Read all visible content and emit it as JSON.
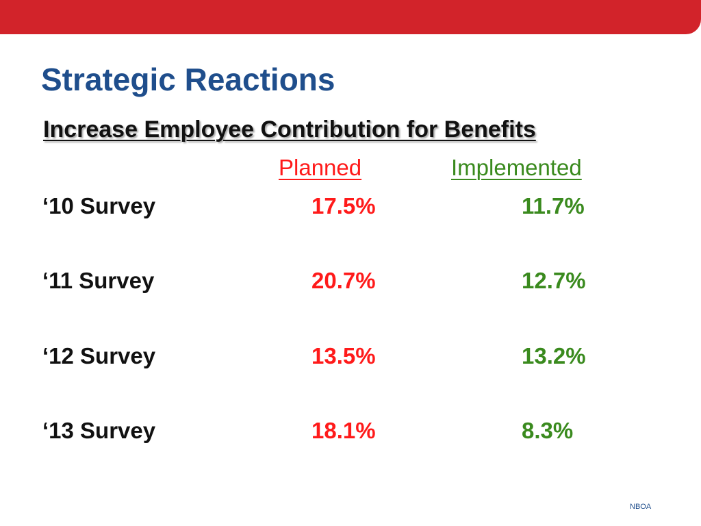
{
  "slide": {
    "title": "Strategic Reactions",
    "subtitle": "Increase Employee Contribution for Benefits",
    "columns": {
      "planned": "Planned",
      "implemented": "Implemented"
    },
    "rows": [
      {
        "label": "‘10 Survey",
        "planned": "17.5%",
        "implemented": "11.7%"
      },
      {
        "label": "‘11 Survey",
        "planned": "20.7%",
        "implemented": "12.7%"
      },
      {
        "label": "‘12 Survey",
        "planned": "13.5%",
        "implemented": "13.2%"
      },
      {
        "label": "‘13 Survey",
        "planned": "18.1%",
        "implemented": "8.3%"
      }
    ],
    "footer": "NBOA"
  },
  "colors": {
    "brand_red": "#d2232a",
    "title_blue": "#1f4e8c",
    "planned_red": "#ff1a1a",
    "implemented_green": "#3a8a1e"
  }
}
